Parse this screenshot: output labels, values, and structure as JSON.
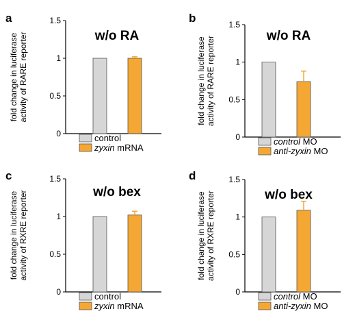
{
  "colors": {
    "control_fill": "#d6d6d6",
    "treatment_fill": "#f5a734",
    "axis": "#000000"
  },
  "chart_data": [
    {
      "panel": "a",
      "type": "bar",
      "title": "w/o RA",
      "ylabel_lines": [
        "fold change in luciferase",
        "activity of RARE reporter"
      ],
      "ylim": [
        0,
        1.5
      ],
      "yticks": [
        0,
        0.5,
        1,
        1.5
      ],
      "ytick_labels": [
        "0",
        "0.5",
        "1",
        "1.5"
      ],
      "series": [
        {
          "legend": [
            {
              "text": "control",
              "italic": false
            }
          ],
          "value": 1.0,
          "error": 0,
          "color": "#d6d6d6"
        },
        {
          "legend": [
            {
              "text": "zyxin",
              "italic": true
            },
            {
              "text": " mRNA",
              "italic": false
            }
          ],
          "value": 1.0,
          "error": 0.02,
          "color": "#f5a734"
        }
      ]
    },
    {
      "panel": "b",
      "type": "bar",
      "title": "w/o RA",
      "ylabel_lines": [
        "fold change in luciferase",
        "activity of RARE reporter"
      ],
      "ylim": [
        0,
        1.5
      ],
      "yticks": [
        0,
        0.5,
        1,
        1.5
      ],
      "ytick_labels": [
        "0",
        "0.5",
        "1",
        "1.5"
      ],
      "series": [
        {
          "legend": [
            {
              "text": "control",
              "italic": true
            },
            {
              "text": " MO",
              "italic": false
            }
          ],
          "value": 1.0,
          "error": 0,
          "color": "#d6d6d6"
        },
        {
          "legend": [
            {
              "text": "anti-zyxin",
              "italic": true
            },
            {
              "text": " MO",
              "italic": false
            }
          ],
          "value": 0.74,
          "error": 0.14,
          "color": "#f5a734"
        }
      ]
    },
    {
      "panel": "c",
      "type": "bar",
      "title": "w/o bex",
      "ylabel_lines": [
        "fold change in luciferase",
        "activity of RXRE reporter"
      ],
      "ylim": [
        0,
        1.5
      ],
      "yticks": [
        0,
        0.5,
        1,
        1.5
      ],
      "ytick_labels": [
        "0",
        "0.5",
        "1",
        "1.5"
      ],
      "series": [
        {
          "legend": [
            {
              "text": "control",
              "italic": false
            }
          ],
          "value": 1.0,
          "error": 0,
          "color": "#d6d6d6"
        },
        {
          "legend": [
            {
              "text": "zyxin",
              "italic": true
            },
            {
              "text": " mRNA",
              "italic": false
            }
          ],
          "value": 1.02,
          "error": 0.05,
          "color": "#f5a734"
        }
      ]
    },
    {
      "panel": "d",
      "type": "bar",
      "title": "w/o bex",
      "ylabel_lines": [
        "fold change in luciferase",
        "activity of RXRE reporter"
      ],
      "ylim": [
        0,
        1.5
      ],
      "yticks": [
        0,
        0.5,
        1,
        1.5
      ],
      "ytick_labels": [
        "0",
        "0.5",
        "1",
        "1.5"
      ],
      "series": [
        {
          "legend": [
            {
              "text": "control",
              "italic": true
            },
            {
              "text": " MO",
              "italic": false
            }
          ],
          "value": 1.0,
          "error": 0,
          "color": "#d6d6d6"
        },
        {
          "legend": [
            {
              "text": "anti-zyxin",
              "italic": true
            },
            {
              "text": " MO",
              "italic": false
            }
          ],
          "value": 1.09,
          "error": 0.12,
          "color": "#f5a734"
        }
      ]
    }
  ]
}
